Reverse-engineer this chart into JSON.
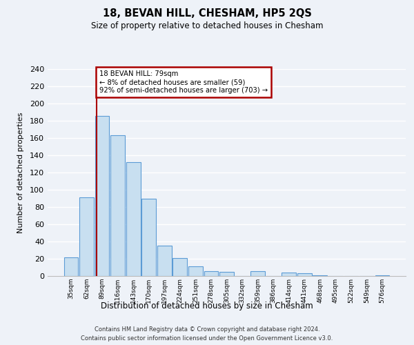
{
  "title": "18, BEVAN HILL, CHESHAM, HP5 2QS",
  "subtitle": "Size of property relative to detached houses in Chesham",
  "xlabel": "Distribution of detached houses by size in Chesham",
  "ylabel": "Number of detached properties",
  "bar_labels": [
    "35sqm",
    "62sqm",
    "89sqm",
    "116sqm",
    "143sqm",
    "170sqm",
    "197sqm",
    "224sqm",
    "251sqm",
    "278sqm",
    "305sqm",
    "332sqm",
    "359sqm",
    "386sqm",
    "414sqm",
    "441sqm",
    "468sqm",
    "495sqm",
    "522sqm",
    "549sqm",
    "576sqm"
  ],
  "bar_values": [
    22,
    91,
    186,
    163,
    132,
    90,
    35,
    21,
    11,
    6,
    5,
    0,
    6,
    0,
    4,
    3,
    1,
    0,
    0,
    0,
    1
  ],
  "bar_color": "#c8dff0",
  "bar_edge_color": "#5b9bd5",
  "property_line_label": "18 BEVAN HILL: 79sqm",
  "annotation_line1": "← 8% of detached houses are smaller (59)",
  "annotation_line2": "92% of semi-detached houses are larger (703) →",
  "annotation_box_color": "#ffffff",
  "annotation_box_edge": "#aa0000",
  "property_line_color": "#aa0000",
  "ylim": [
    0,
    240
  ],
  "yticks": [
    0,
    20,
    40,
    60,
    80,
    100,
    120,
    140,
    160,
    180,
    200,
    220,
    240
  ],
  "footer_line1": "Contains HM Land Registry data © Crown copyright and database right 2024.",
  "footer_line2": "Contains public sector information licensed under the Open Government Licence v3.0.",
  "bg_color": "#eef2f8",
  "grid_color": "#ffffff"
}
